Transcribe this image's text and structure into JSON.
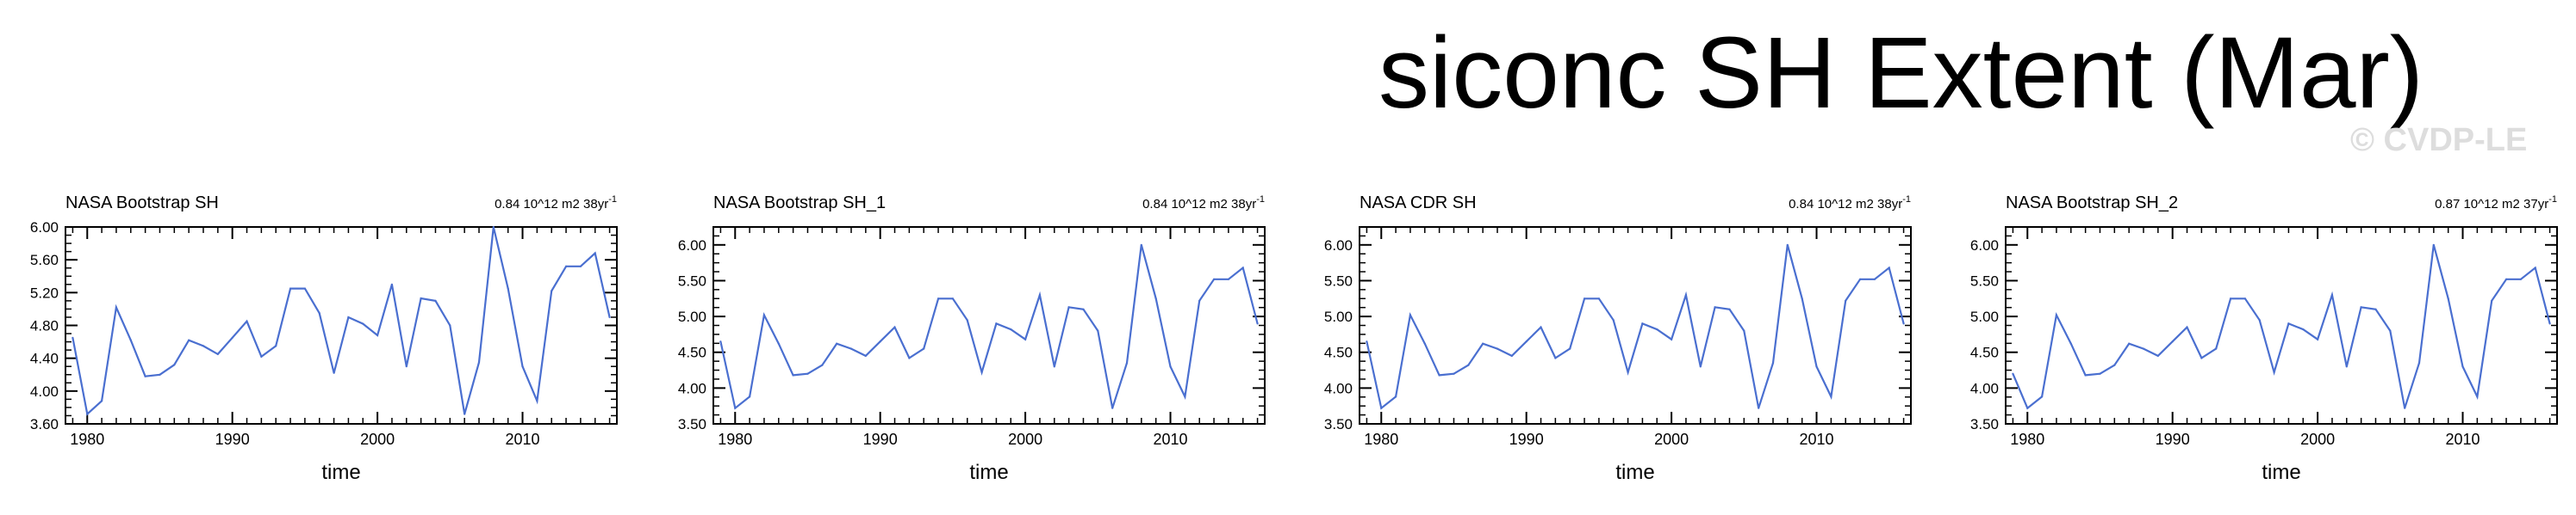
{
  "title": "siconc SH Extent (Mar)",
  "watermark": "© CVDP-LE",
  "colors": {
    "line": "#4a6fd0",
    "axis": "#000000",
    "watermark": "#dddddd"
  },
  "chart_data": [
    {
      "type": "line",
      "title": "NASA Bootstrap SH",
      "annotation": "0.84 10^12 m2 38yr",
      "annotation_sup": "-1",
      "xlabel": "time",
      "ylabel": "",
      "xlim": [
        1978.5,
        2016.5
      ],
      "ylim": [
        3.6,
        6.0
      ],
      "xticks": [
        1980,
        1990,
        2000,
        2010
      ],
      "yticks": [
        3.6,
        4.0,
        4.4,
        4.8,
        5.2,
        5.6,
        6.0
      ],
      "yticklabels": [
        "3.60",
        "4.00",
        "4.40",
        "4.80",
        "5.20",
        "5.60",
        "6.00"
      ],
      "x": [
        1979,
        1980,
        1981,
        1982,
        1983,
        1984,
        1985,
        1986,
        1987,
        1988,
        1989,
        1990,
        1991,
        1992,
        1993,
        1994,
        1995,
        1996,
        1997,
        1998,
        1999,
        2000,
        2001,
        2002,
        2003,
        2004,
        2005,
        2006,
        2007,
        2008,
        2009,
        2010,
        2011,
        2012,
        2013,
        2014,
        2015,
        2016
      ],
      "series": [
        {
          "values": [
            4.65,
            3.72,
            3.88,
            5.02,
            4.62,
            4.18,
            4.2,
            4.32,
            4.62,
            4.55,
            4.45,
            4.65,
            4.85,
            4.42,
            4.55,
            5.25,
            5.25,
            4.95,
            4.22,
            4.9,
            4.82,
            4.68,
            5.3,
            4.3,
            5.13,
            5.1,
            4.8,
            3.72,
            4.35,
            6.0,
            5.25,
            4.3,
            3.88,
            5.22,
            5.52,
            5.52,
            5.68,
            4.9
          ]
        }
      ]
    },
    {
      "type": "line",
      "title": "NASA Bootstrap SH_1",
      "annotation": "0.84 10^12 m2 38yr",
      "annotation_sup": "-1",
      "xlabel": "time",
      "ylabel": "",
      "xlim": [
        1978.5,
        2016.5
      ],
      "ylim": [
        3.5,
        6.25
      ],
      "xticks": [
        1980,
        1990,
        2000,
        2010
      ],
      "yticks": [
        3.5,
        4.0,
        4.5,
        5.0,
        5.5,
        6.0
      ],
      "yticklabels": [
        "3.50",
        "4.00",
        "4.50",
        "5.00",
        "5.50",
        "6.00"
      ],
      "x": [
        1979,
        1980,
        1981,
        1982,
        1983,
        1984,
        1985,
        1986,
        1987,
        1988,
        1989,
        1990,
        1991,
        1992,
        1993,
        1994,
        1995,
        1996,
        1997,
        1998,
        1999,
        2000,
        2001,
        2002,
        2003,
        2004,
        2005,
        2006,
        2007,
        2008,
        2009,
        2010,
        2011,
        2012,
        2013,
        2014,
        2015,
        2016
      ],
      "series": [
        {
          "values": [
            4.65,
            3.72,
            3.88,
            5.02,
            4.62,
            4.18,
            4.2,
            4.32,
            4.62,
            4.55,
            4.45,
            4.65,
            4.85,
            4.42,
            4.55,
            5.25,
            5.25,
            4.95,
            4.22,
            4.9,
            4.82,
            4.68,
            5.3,
            4.3,
            5.13,
            5.1,
            4.8,
            3.72,
            4.35,
            6.0,
            5.25,
            4.3,
            3.88,
            5.22,
            5.52,
            5.52,
            5.68,
            4.9
          ]
        }
      ]
    },
    {
      "type": "line",
      "title": "NASA CDR SH",
      "annotation": "0.84 10^12 m2 38yr",
      "annotation_sup": "-1",
      "xlabel": "time",
      "ylabel": "",
      "xlim": [
        1978.5,
        2016.5
      ],
      "ylim": [
        3.5,
        6.25
      ],
      "xticks": [
        1980,
        1990,
        2000,
        2010
      ],
      "yticks": [
        3.5,
        4.0,
        4.5,
        5.0,
        5.5,
        6.0
      ],
      "yticklabels": [
        "3.50",
        "4.00",
        "4.50",
        "5.00",
        "5.50",
        "6.00"
      ],
      "x": [
        1979,
        1980,
        1981,
        1982,
        1983,
        1984,
        1985,
        1986,
        1987,
        1988,
        1989,
        1990,
        1991,
        1992,
        1993,
        1994,
        1995,
        1996,
        1997,
        1998,
        1999,
        2000,
        2001,
        2002,
        2003,
        2004,
        2005,
        2006,
        2007,
        2008,
        2009,
        2010,
        2011,
        2012,
        2013,
        2014,
        2015,
        2016
      ],
      "series": [
        {
          "values": [
            4.65,
            3.72,
            3.88,
            5.02,
            4.62,
            4.18,
            4.2,
            4.32,
            4.62,
            4.55,
            4.45,
            4.65,
            4.85,
            4.42,
            4.55,
            5.25,
            5.25,
            4.95,
            4.22,
            4.9,
            4.82,
            4.68,
            5.3,
            4.3,
            5.13,
            5.1,
            4.8,
            3.72,
            4.35,
            6.0,
            5.25,
            4.3,
            3.88,
            5.22,
            5.52,
            5.52,
            5.68,
            4.9
          ]
        }
      ]
    },
    {
      "type": "line",
      "title": "NASA Bootstrap SH_2",
      "annotation": "0.87 10^12 m2 37yr",
      "annotation_sup": "-1",
      "xlabel": "time",
      "ylabel": "",
      "xlim": [
        1978.5,
        2016.5
      ],
      "ylim": [
        3.5,
        6.25
      ],
      "xticks": [
        1980,
        1990,
        2000,
        2010
      ],
      "yticks": [
        3.5,
        4.0,
        4.5,
        5.0,
        5.5,
        6.0
      ],
      "yticklabels": [
        "3.50",
        "4.00",
        "4.50",
        "5.00",
        "5.50",
        "6.00"
      ],
      "x": [
        1979,
        1980,
        1981,
        1982,
        1983,
        1984,
        1985,
        1986,
        1987,
        1988,
        1989,
        1990,
        1991,
        1992,
        1993,
        1994,
        1995,
        1996,
        1997,
        1998,
        1999,
        2000,
        2001,
        2002,
        2003,
        2004,
        2005,
        2006,
        2007,
        2008,
        2009,
        2010,
        2011,
        2012,
        2013,
        2014,
        2015,
        2016
      ],
      "series": [
        {
          "values": [
            4.2,
            3.72,
            3.88,
            5.02,
            4.62,
            4.18,
            4.2,
            4.32,
            4.62,
            4.55,
            4.45,
            4.65,
            4.85,
            4.42,
            4.55,
            5.25,
            5.25,
            4.95,
            4.22,
            4.9,
            4.82,
            4.68,
            5.3,
            4.3,
            5.13,
            5.1,
            4.8,
            3.72,
            4.35,
            6.0,
            5.25,
            4.3,
            3.88,
            5.22,
            5.52,
            5.52,
            5.68,
            4.9
          ]
        }
      ]
    }
  ]
}
